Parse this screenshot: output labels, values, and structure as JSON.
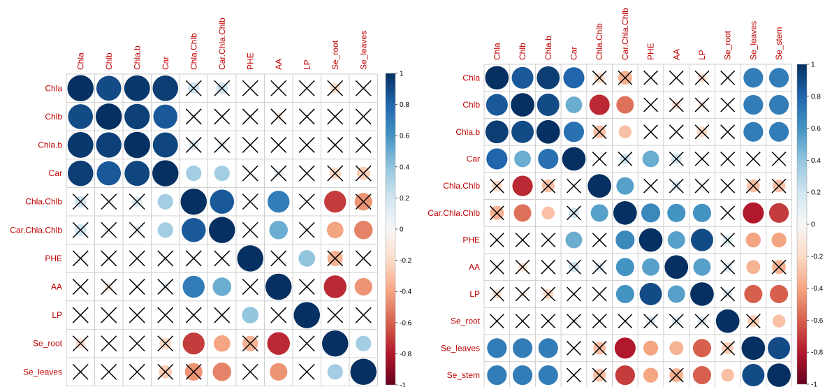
{
  "chart_data": [
    {
      "type": "heatmap",
      "variables": [
        "Chla",
        "Chlb",
        "Chla.b",
        "Car",
        "Chla.Chlb",
        "Car.Chla.Chlb",
        "PHE",
        "AA",
        "LP",
        "Se_root",
        "Se_leaves"
      ],
      "values": [
        [
          1.0,
          0.9,
          0.97,
          0.95,
          0.2,
          0.2,
          0.0,
          0.0,
          0.0,
          -0.15,
          -0.05
        ],
        [
          0.9,
          1.0,
          0.94,
          0.85,
          0.05,
          0.05,
          0.05,
          -0.1,
          0.0,
          0.0,
          0.0
        ],
        [
          0.97,
          0.94,
          1.0,
          0.92,
          0.15,
          0.1,
          0.0,
          0.0,
          0.0,
          0.0,
          0.0
        ],
        [
          0.95,
          0.85,
          0.92,
          1.0,
          0.35,
          0.35,
          0.0,
          0.1,
          0.0,
          -0.2,
          -0.25
        ],
        [
          0.2,
          0.05,
          0.15,
          0.35,
          1.0,
          0.85,
          0.0,
          0.7,
          0.05,
          -0.7,
          -0.45
        ],
        [
          0.2,
          0.05,
          0.1,
          0.35,
          0.85,
          1.0,
          0.0,
          0.5,
          0.05,
          -0.4,
          -0.5
        ],
        [
          0.0,
          0.05,
          0.0,
          0.0,
          0.0,
          0.0,
          1.0,
          0.0,
          0.4,
          -0.35,
          0.0
        ],
        [
          0.0,
          -0.1,
          0.0,
          0.1,
          0.7,
          0.5,
          0.0,
          1.0,
          0.0,
          -0.75,
          -0.45
        ],
        [
          0.0,
          0.0,
          0.0,
          0.0,
          0.05,
          0.05,
          0.4,
          0.0,
          1.0,
          0.0,
          0.0
        ],
        [
          -0.15,
          0.0,
          0.0,
          -0.2,
          -0.7,
          -0.4,
          -0.35,
          -0.75,
          0.0,
          1.0,
          0.35
        ],
        [
          -0.05,
          0.0,
          0.0,
          -0.25,
          -0.45,
          -0.5,
          0.0,
          -0.45,
          0.0,
          0.35,
          1.0
        ]
      ],
      "insignificant": [
        [
          false,
          false,
          false,
          false,
          true,
          true,
          true,
          true,
          true,
          true,
          true
        ],
        [
          false,
          false,
          false,
          false,
          true,
          true,
          true,
          true,
          true,
          true,
          true
        ],
        [
          false,
          false,
          false,
          false,
          true,
          true,
          true,
          true,
          true,
          true,
          true
        ],
        [
          false,
          false,
          false,
          false,
          false,
          false,
          true,
          true,
          true,
          true,
          true
        ],
        [
          true,
          true,
          true,
          false,
          false,
          false,
          true,
          false,
          true,
          false,
          true
        ],
        [
          true,
          true,
          true,
          false,
          false,
          false,
          true,
          false,
          true,
          false,
          false
        ],
        [
          true,
          true,
          true,
          true,
          true,
          true,
          false,
          true,
          false,
          true,
          true
        ],
        [
          true,
          true,
          true,
          true,
          false,
          false,
          true,
          false,
          true,
          false,
          false
        ],
        [
          true,
          true,
          true,
          true,
          true,
          true,
          false,
          true,
          false,
          true,
          true
        ],
        [
          true,
          true,
          true,
          true,
          false,
          false,
          true,
          false,
          true,
          false,
          false
        ],
        [
          true,
          true,
          true,
          true,
          true,
          false,
          true,
          false,
          true,
          false,
          false
        ]
      ],
      "colorbar_ticks": [
        "1",
        "0.8",
        "0.6",
        "0.4",
        "0.2",
        "0",
        "-0.2",
        "-0.4",
        "-0.6",
        "-0.8",
        "-1"
      ],
      "color_range": [
        -1,
        1
      ],
      "label_color": "#c00000",
      "mark": "circle"
    },
    {
      "type": "heatmap",
      "variables": [
        "Chla",
        "Chlb",
        "Chla.b",
        "Car",
        "Chla.Chlb",
        "Car.Chla.Chlb",
        "PHE",
        "AA",
        "LP",
        "Se_root",
        "Se_leaves",
        "Se_stem"
      ],
      "values": [
        [
          1.0,
          0.85,
          0.95,
          0.8,
          -0.2,
          -0.35,
          0.0,
          0.0,
          -0.15,
          0.0,
          0.7,
          0.7
        ],
        [
          0.85,
          1.0,
          0.9,
          0.5,
          -0.75,
          -0.55,
          0.0,
          -0.15,
          -0.1,
          0.0,
          0.7,
          0.7
        ],
        [
          0.95,
          0.9,
          1.0,
          0.75,
          -0.3,
          -0.3,
          0.0,
          0.0,
          -0.2,
          0.0,
          0.7,
          0.7
        ],
        [
          0.8,
          0.5,
          0.75,
          1.0,
          0.0,
          0.2,
          0.5,
          0.2,
          0.05,
          0.0,
          0.0,
          0.0
        ],
        [
          -0.2,
          -0.75,
          -0.3,
          0.0,
          1.0,
          0.55,
          0.0,
          0.15,
          0.0,
          0.0,
          -0.3,
          -0.3
        ],
        [
          -0.35,
          -0.55,
          -0.3,
          0.2,
          0.55,
          1.0,
          0.65,
          0.6,
          0.6,
          0.0,
          -0.8,
          -0.7
        ],
        [
          0.0,
          0.0,
          0.0,
          0.5,
          0.0,
          0.65,
          1.0,
          0.55,
          0.9,
          0.15,
          -0.4,
          -0.4
        ],
        [
          0.0,
          -0.15,
          0.0,
          0.2,
          0.15,
          0.6,
          0.55,
          1.0,
          0.55,
          0.15,
          -0.35,
          -0.35
        ],
        [
          -0.15,
          -0.1,
          -0.2,
          0.05,
          0.0,
          0.6,
          0.9,
          0.55,
          1.0,
          0.15,
          -0.6,
          -0.6
        ],
        [
          0.0,
          0.0,
          0.0,
          0.0,
          0.0,
          0.0,
          0.15,
          0.15,
          0.15,
          1.0,
          -0.25,
          -0.3
        ],
        [
          0.7,
          0.7,
          0.7,
          0.0,
          -0.3,
          -0.8,
          -0.4,
          -0.35,
          -0.6,
          -0.25,
          1.0,
          0.9
        ],
        [
          0.7,
          0.7,
          0.7,
          0.0,
          -0.3,
          -0.7,
          -0.4,
          -0.35,
          -0.6,
          -0.3,
          0.9,
          1.0
        ]
      ],
      "insignificant": [
        [
          false,
          false,
          false,
          false,
          true,
          true,
          true,
          true,
          true,
          true,
          false,
          false
        ],
        [
          false,
          false,
          false,
          false,
          false,
          false,
          true,
          true,
          true,
          true,
          false,
          false
        ],
        [
          false,
          false,
          false,
          false,
          true,
          false,
          true,
          true,
          true,
          true,
          false,
          false
        ],
        [
          false,
          false,
          false,
          false,
          true,
          true,
          false,
          true,
          true,
          true,
          true,
          true
        ],
        [
          true,
          false,
          true,
          true,
          false,
          false,
          true,
          true,
          true,
          true,
          true,
          true
        ],
        [
          true,
          false,
          false,
          true,
          false,
          false,
          false,
          false,
          false,
          true,
          false,
          false
        ],
        [
          true,
          true,
          true,
          false,
          true,
          false,
          false,
          false,
          false,
          true,
          false,
          false
        ],
        [
          true,
          true,
          true,
          true,
          true,
          false,
          false,
          false,
          false,
          true,
          false,
          true
        ],
        [
          true,
          true,
          true,
          true,
          true,
          false,
          false,
          false,
          false,
          true,
          false,
          false
        ],
        [
          true,
          true,
          true,
          true,
          true,
          true,
          true,
          true,
          true,
          false,
          true,
          false
        ],
        [
          false,
          false,
          false,
          true,
          true,
          false,
          false,
          false,
          false,
          true,
          false,
          false
        ],
        [
          false,
          false,
          false,
          true,
          true,
          false,
          false,
          true,
          false,
          false,
          false,
          false
        ]
      ],
      "colorbar_ticks": [
        "1",
        "0.8",
        "0.6",
        "0.4",
        "0.2",
        "0",
        "-0.2",
        "-0.4",
        "-0.6",
        "-0.8",
        "-1"
      ],
      "color_range": [
        -1,
        1
      ],
      "label_color": "#c00000",
      "mark": "circle"
    }
  ],
  "colors": {
    "positive": "#053061",
    "negative": "#67001f",
    "neutral": "#f7f7f7",
    "grid": "#cfcfcf",
    "cross": "#000000"
  }
}
